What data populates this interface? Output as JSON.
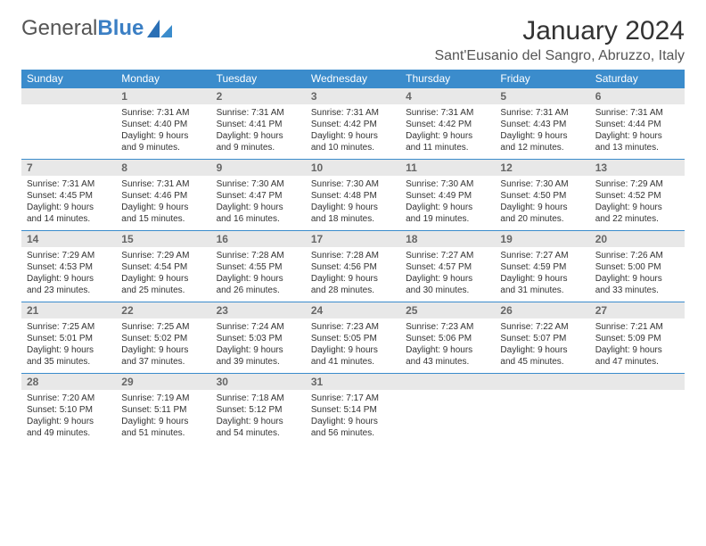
{
  "logo": {
    "word1": "General",
    "word2": "Blue"
  },
  "title": "January 2024",
  "location": "Sant'Eusanio del Sangro, Abruzzo, Italy",
  "colors": {
    "header_bg": "#3b8ccc",
    "header_text": "#ffffff",
    "daynum_bg": "#e8e8e8",
    "daynum_text": "#666666",
    "logo_gray": "#555555",
    "logo_blue": "#3b7fc4",
    "row_divider": "#3b8ccc"
  },
  "weekdays": [
    "Sunday",
    "Monday",
    "Tuesday",
    "Wednesday",
    "Thursday",
    "Friday",
    "Saturday"
  ],
  "weeks": [
    {
      "nums": [
        "",
        "1",
        "2",
        "3",
        "4",
        "5",
        "6"
      ],
      "cells": [
        null,
        {
          "sr": "Sunrise: 7:31 AM",
          "ss": "Sunset: 4:40 PM",
          "d1": "Daylight: 9 hours",
          "d2": "and 9 minutes."
        },
        {
          "sr": "Sunrise: 7:31 AM",
          "ss": "Sunset: 4:41 PM",
          "d1": "Daylight: 9 hours",
          "d2": "and 9 minutes."
        },
        {
          "sr": "Sunrise: 7:31 AM",
          "ss": "Sunset: 4:42 PM",
          "d1": "Daylight: 9 hours",
          "d2": "and 10 minutes."
        },
        {
          "sr": "Sunrise: 7:31 AM",
          "ss": "Sunset: 4:42 PM",
          "d1": "Daylight: 9 hours",
          "d2": "and 11 minutes."
        },
        {
          "sr": "Sunrise: 7:31 AM",
          "ss": "Sunset: 4:43 PM",
          "d1": "Daylight: 9 hours",
          "d2": "and 12 minutes."
        },
        {
          "sr": "Sunrise: 7:31 AM",
          "ss": "Sunset: 4:44 PM",
          "d1": "Daylight: 9 hours",
          "d2": "and 13 minutes."
        }
      ]
    },
    {
      "nums": [
        "7",
        "8",
        "9",
        "10",
        "11",
        "12",
        "13"
      ],
      "cells": [
        {
          "sr": "Sunrise: 7:31 AM",
          "ss": "Sunset: 4:45 PM",
          "d1": "Daylight: 9 hours",
          "d2": "and 14 minutes."
        },
        {
          "sr": "Sunrise: 7:31 AM",
          "ss": "Sunset: 4:46 PM",
          "d1": "Daylight: 9 hours",
          "d2": "and 15 minutes."
        },
        {
          "sr": "Sunrise: 7:30 AM",
          "ss": "Sunset: 4:47 PM",
          "d1": "Daylight: 9 hours",
          "d2": "and 16 minutes."
        },
        {
          "sr": "Sunrise: 7:30 AM",
          "ss": "Sunset: 4:48 PM",
          "d1": "Daylight: 9 hours",
          "d2": "and 18 minutes."
        },
        {
          "sr": "Sunrise: 7:30 AM",
          "ss": "Sunset: 4:49 PM",
          "d1": "Daylight: 9 hours",
          "d2": "and 19 minutes."
        },
        {
          "sr": "Sunrise: 7:30 AM",
          "ss": "Sunset: 4:50 PM",
          "d1": "Daylight: 9 hours",
          "d2": "and 20 minutes."
        },
        {
          "sr": "Sunrise: 7:29 AM",
          "ss": "Sunset: 4:52 PM",
          "d1": "Daylight: 9 hours",
          "d2": "and 22 minutes."
        }
      ]
    },
    {
      "nums": [
        "14",
        "15",
        "16",
        "17",
        "18",
        "19",
        "20"
      ],
      "cells": [
        {
          "sr": "Sunrise: 7:29 AM",
          "ss": "Sunset: 4:53 PM",
          "d1": "Daylight: 9 hours",
          "d2": "and 23 minutes."
        },
        {
          "sr": "Sunrise: 7:29 AM",
          "ss": "Sunset: 4:54 PM",
          "d1": "Daylight: 9 hours",
          "d2": "and 25 minutes."
        },
        {
          "sr": "Sunrise: 7:28 AM",
          "ss": "Sunset: 4:55 PM",
          "d1": "Daylight: 9 hours",
          "d2": "and 26 minutes."
        },
        {
          "sr": "Sunrise: 7:28 AM",
          "ss": "Sunset: 4:56 PM",
          "d1": "Daylight: 9 hours",
          "d2": "and 28 minutes."
        },
        {
          "sr": "Sunrise: 7:27 AM",
          "ss": "Sunset: 4:57 PM",
          "d1": "Daylight: 9 hours",
          "d2": "and 30 minutes."
        },
        {
          "sr": "Sunrise: 7:27 AM",
          "ss": "Sunset: 4:59 PM",
          "d1": "Daylight: 9 hours",
          "d2": "and 31 minutes."
        },
        {
          "sr": "Sunrise: 7:26 AM",
          "ss": "Sunset: 5:00 PM",
          "d1": "Daylight: 9 hours",
          "d2": "and 33 minutes."
        }
      ]
    },
    {
      "nums": [
        "21",
        "22",
        "23",
        "24",
        "25",
        "26",
        "27"
      ],
      "cells": [
        {
          "sr": "Sunrise: 7:25 AM",
          "ss": "Sunset: 5:01 PM",
          "d1": "Daylight: 9 hours",
          "d2": "and 35 minutes."
        },
        {
          "sr": "Sunrise: 7:25 AM",
          "ss": "Sunset: 5:02 PM",
          "d1": "Daylight: 9 hours",
          "d2": "and 37 minutes."
        },
        {
          "sr": "Sunrise: 7:24 AM",
          "ss": "Sunset: 5:03 PM",
          "d1": "Daylight: 9 hours",
          "d2": "and 39 minutes."
        },
        {
          "sr": "Sunrise: 7:23 AM",
          "ss": "Sunset: 5:05 PM",
          "d1": "Daylight: 9 hours",
          "d2": "and 41 minutes."
        },
        {
          "sr": "Sunrise: 7:23 AM",
          "ss": "Sunset: 5:06 PM",
          "d1": "Daylight: 9 hours",
          "d2": "and 43 minutes."
        },
        {
          "sr": "Sunrise: 7:22 AM",
          "ss": "Sunset: 5:07 PM",
          "d1": "Daylight: 9 hours",
          "d2": "and 45 minutes."
        },
        {
          "sr": "Sunrise: 7:21 AM",
          "ss": "Sunset: 5:09 PM",
          "d1": "Daylight: 9 hours",
          "d2": "and 47 minutes."
        }
      ]
    },
    {
      "nums": [
        "28",
        "29",
        "30",
        "31",
        "",
        "",
        ""
      ],
      "cells": [
        {
          "sr": "Sunrise: 7:20 AM",
          "ss": "Sunset: 5:10 PM",
          "d1": "Daylight: 9 hours",
          "d2": "and 49 minutes."
        },
        {
          "sr": "Sunrise: 7:19 AM",
          "ss": "Sunset: 5:11 PM",
          "d1": "Daylight: 9 hours",
          "d2": "and 51 minutes."
        },
        {
          "sr": "Sunrise: 7:18 AM",
          "ss": "Sunset: 5:12 PM",
          "d1": "Daylight: 9 hours",
          "d2": "and 54 minutes."
        },
        {
          "sr": "Sunrise: 7:17 AM",
          "ss": "Sunset: 5:14 PM",
          "d1": "Daylight: 9 hours",
          "d2": "and 56 minutes."
        },
        null,
        null,
        null
      ]
    }
  ]
}
